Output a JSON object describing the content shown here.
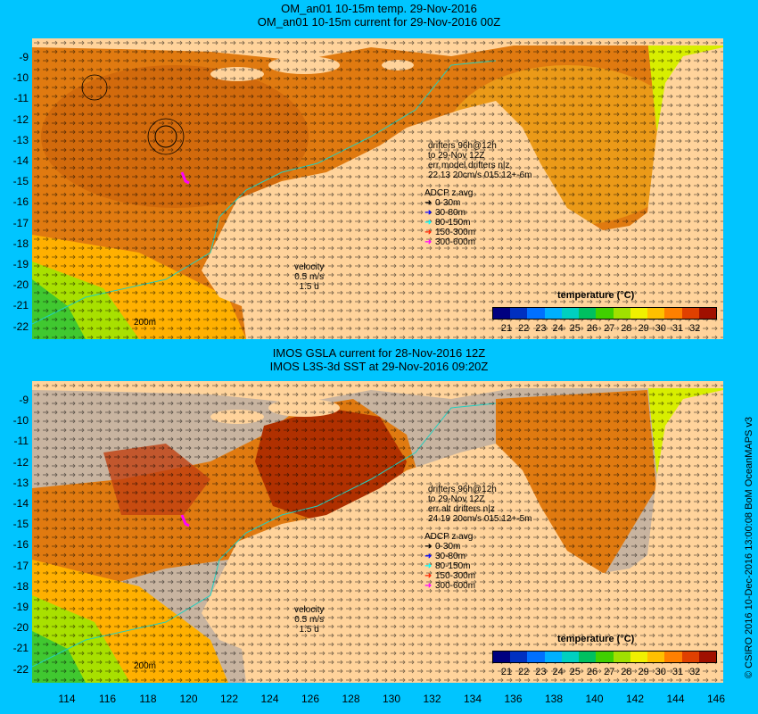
{
  "top_panel": {
    "title_line1": "OM_an01 10-15m temp. 29-Nov-2016",
    "title_line2": "OM_an01 10-15m current for 29-Nov-2016 00Z",
    "drifters_text": [
      "drifters 96h@12h",
      "to 29-Nov 12Z",
      "err model drifters n|z",
      "22 13 20cm/s 015:12+-6m"
    ],
    "adcp_title": "ADCP z avg",
    "adcp_items": [
      "0-30m",
      "30-80m",
      "80-150m",
      "150-300m",
      "300-600m"
    ],
    "velocity_lines": [
      "velocity",
      "0.5 m/s",
      "1.5 d"
    ],
    "depth_label": "200m",
    "colorbar_title": "temperature (°C)"
  },
  "bottom_panel": {
    "title_line1": "IMOS GSLA current for 28-Nov-2016 12Z",
    "title_line2": "IMOS L3S-3d SST at 29-Nov-2016 09:20Z",
    "drifters_text": [
      "drifters 96h@12h",
      "to 29-Nov 12Z",
      "err alt drifters n|z",
      "24 19 20cm/s 015:12+-5m"
    ],
    "adcp_title": "ADCP z avg",
    "adcp_items": [
      "0-30m",
      "30-80m",
      "80-150m",
      "150-300m",
      "300-600m"
    ],
    "velocity_lines": [
      "velocity",
      "0.5 m/s",
      "1.5 d"
    ],
    "depth_label": "200m",
    "colorbar_title": "temperature (°C)"
  },
  "y_ticks": [
    "-9",
    "-10",
    "-11",
    "-12",
    "-13",
    "-14",
    "-15",
    "-16",
    "-17",
    "-18",
    "-19",
    "-20",
    "-21",
    "-22"
  ],
  "x_ticks": [
    "114",
    "116",
    "118",
    "120",
    "122",
    "124",
    "126",
    "128",
    "130",
    "132",
    "134",
    "136",
    "138",
    "140",
    "142",
    "144",
    "146"
  ],
  "colorbar_ticks": [
    "21",
    "22",
    "23",
    "24",
    "25",
    "26",
    "27",
    "28",
    "29",
    "30",
    "31",
    "32"
  ],
  "colorbar_colors": [
    "#000080",
    "#0030c0",
    "#0070ff",
    "#00b0ff",
    "#00d0c0",
    "#00c060",
    "#40d000",
    "#a0e000",
    "#f0f000",
    "#ffc000",
    "#ff8000",
    "#e04000",
    "#a01000"
  ],
  "adcp_colors": [
    "#000000",
    "#0000ff",
    "#00ffff",
    "#ff2000",
    "#ff00ff"
  ],
  "credit": "© CSIRO 2016 10-Dec-2016 13:00:08 BoM OceanMAPS v3",
  "colors": {
    "background": "#00c5ff",
    "land": "#ffd39b",
    "ocean_warm": "#e07a10",
    "no_data": "#c8b4a0"
  }
}
